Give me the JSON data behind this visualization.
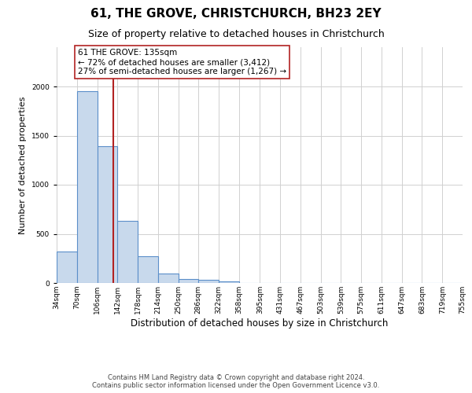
{
  "title": "61, THE GROVE, CHRISTCHURCH, BH23 2EY",
  "subtitle": "Size of property relative to detached houses in Christchurch",
  "xlabel": "Distribution of detached houses by size in Christchurch",
  "ylabel": "Number of detached properties",
  "bin_edges": [
    34,
    70,
    106,
    142,
    178,
    214,
    250,
    286,
    322,
    358,
    395,
    431,
    467,
    503,
    539,
    575,
    611,
    647,
    683,
    719,
    755
  ],
  "bar_heights": [
    320,
    1950,
    1390,
    630,
    275,
    95,
    42,
    32,
    20,
    0,
    0,
    0,
    0,
    0,
    0,
    0,
    0,
    0,
    0,
    0
  ],
  "bar_color": "#c8d9ec",
  "bar_edge_color": "#5b8fc9",
  "property_line_x": 135,
  "property_line_color": "#b22222",
  "annotation_title": "61 THE GROVE: 135sqm",
  "annotation_line1": "← 72% of detached houses are smaller (3,412)",
  "annotation_line2": "27% of semi-detached houses are larger (1,267) →",
  "annotation_box_color": "#ffffff",
  "annotation_box_edge_color": "#b22222",
  "ylim": [
    0,
    2400
  ],
  "tick_labels": [
    "34sqm",
    "70sqm",
    "106sqm",
    "142sqm",
    "178sqm",
    "214sqm",
    "250sqm",
    "286sqm",
    "322sqm",
    "358sqm",
    "395sqm",
    "431sqm",
    "467sqm",
    "503sqm",
    "539sqm",
    "575sqm",
    "611sqm",
    "647sqm",
    "683sqm",
    "719sqm",
    "755sqm"
  ],
  "footer1": "Contains HM Land Registry data © Crown copyright and database right 2024.",
  "footer2": "Contains public sector information licensed under the Open Government Licence v3.0.",
  "title_fontsize": 11,
  "subtitle_fontsize": 9,
  "xlabel_fontsize": 8.5,
  "ylabel_fontsize": 8,
  "tick_fontsize": 6.5,
  "annotation_fontsize": 7.5,
  "footer_fontsize": 6,
  "background_color": "#ffffff",
  "grid_color": "#d0d0d0"
}
